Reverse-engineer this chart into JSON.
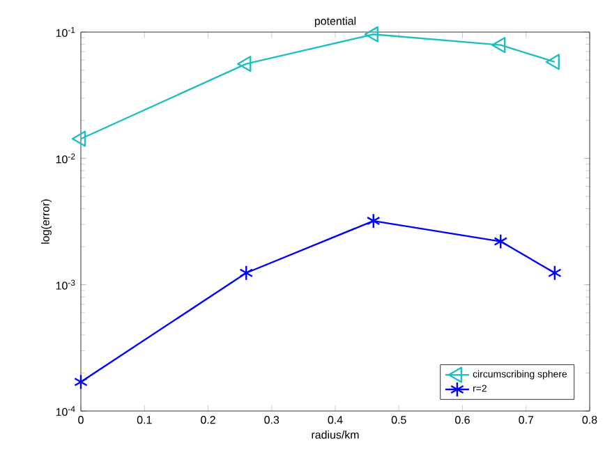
{
  "chart_data": {
    "type": "line",
    "title": "potential",
    "xlabel": "radius/km",
    "ylabel": "log(error)",
    "x": [
      0,
      0.26,
      0.46,
      0.66,
      0.745
    ],
    "series": [
      {
        "name": "circumscribing sphere",
        "color": "#1fbfbf",
        "marker": "triangle",
        "values": [
          0.0143,
          0.056,
          0.096,
          0.079,
          0.058
        ]
      },
      {
        "name": "r=2",
        "color": "#0000ff",
        "marker": "cross",
        "values": [
          0.00017,
          0.00124,
          0.0032,
          0.0022,
          0.00124
        ]
      }
    ],
    "log": "y",
    "grid": false,
    "legend": "bottom right",
    "line_style": "solid",
    "xlim": [
      0,
      0.8
    ],
    "xticks": [
      0,
      0.1,
      0.2,
      0.3,
      0.4,
      0.5,
      0.6,
      0.7,
      0.8
    ],
    "ylim": [
      0.0001,
      0.1
    ],
    "yticks": [
      {
        "value": 0.0001,
        "label": "10$^{-4}$"
      },
      {
        "value": 0.001,
        "label": "10$^{-3}$"
      },
      {
        "value": 0.01,
        "label": "10$^{-2}$"
      },
      {
        "value": 0.1,
        "label": "10$^{-1}$"
      }
    ]
  }
}
